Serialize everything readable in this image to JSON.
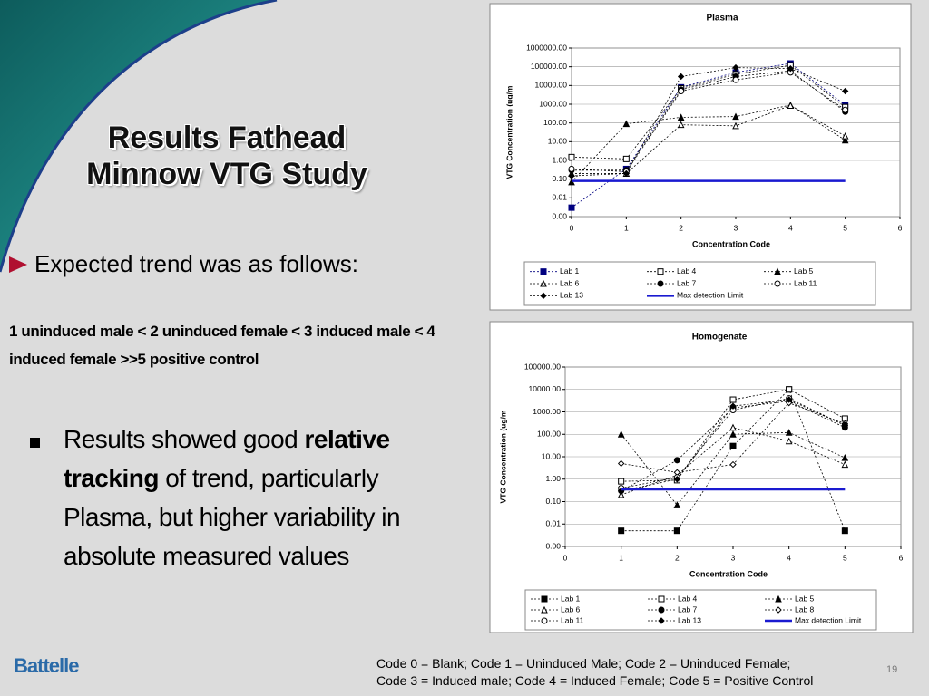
{
  "title": [
    "Results Fathead",
    "Minnow VTG Study"
  ],
  "bullet_1": "Expected trend was as follows:",
  "trend": "1 uninduced male < 2 uninduced female < 3 induced male < 4 induced female >>5 positive control",
  "bullet_2": {
    "before": "Results showed good ",
    "bold": "relative tracking",
    "after": " of trend, particularly Plasma, but higher variability in absolute measured values"
  },
  "logo": "Battelle",
  "codes": [
    "Code 0 = Blank; Code 1 = Uninduced Male;  Code 2 = Uninduced Female;",
    "Code 3 = Induced male; Code 4 = Induced Female;  Code 5 = Positive Control"
  ],
  "page_number": "19",
  "chart_data": [
    {
      "type": "line",
      "title": "Plasma",
      "xlabel": "Concentration Code",
      "ylabel": "VTG Concentration (ug/m",
      "log_y": true,
      "x": [
        0,
        1,
        2,
        3,
        4,
        5
      ],
      "xlim": [
        0,
        6
      ],
      "xticks": [
        0,
        1,
        2,
        3,
        4,
        5,
        6
      ],
      "ylim": [
        0.001,
        1000000
      ],
      "yticks": [
        {
          "value": 0.001,
          "label": "0.00"
        },
        {
          "value": 0.01,
          "label": "0.01"
        },
        {
          "value": 0.1,
          "label": "0.10"
        },
        {
          "value": 1,
          "label": "1.00"
        },
        {
          "value": 10,
          "label": "10.00"
        },
        {
          "value": 100,
          "label": "100.00"
        },
        {
          "value": 1000,
          "label": "1000.00"
        },
        {
          "value": 10000,
          "label": "10000.00"
        },
        {
          "value": 100000,
          "label": "100000.00"
        },
        {
          "value": 1000000,
          "label": "1000000.00"
        }
      ],
      "series": [
        {
          "name": "Lab 1",
          "color": "#000080",
          "marker": "square",
          "line_style": "dotted",
          "values": [
            0.003,
            0.35,
            8000,
            50000,
            150000,
            900
          ]
        },
        {
          "name": "Lab 4",
          "color": "#000000",
          "marker": "square-open",
          "line_style": "dotted",
          "values": [
            1.5,
            1.2,
            7000,
            40000,
            120000,
            700
          ]
        },
        {
          "name": "Lab 5",
          "color": "#000000",
          "marker": "triangle",
          "line_style": "dotted",
          "values": [
            0.07,
            90,
            200,
            220,
            900,
            12
          ]
        },
        {
          "name": "Lab 6",
          "color": "#000000",
          "marker": "triangle-open",
          "line_style": "dotted",
          "values": [
            0.2,
            0.2,
            80,
            70,
            850,
            20
          ]
        },
        {
          "name": "Lab 7",
          "color": "#000000",
          "marker": "circle",
          "line_style": "dotted",
          "values": [
            0.3,
            0.3,
            6000,
            30000,
            60000,
            400
          ]
        },
        {
          "name": "Lab 11",
          "color": "#000000",
          "marker": "circle-open",
          "line_style": "dotted",
          "values": [
            0.35,
            0.25,
            5000,
            20000,
            50000,
            500
          ]
        },
        {
          "name": "Lab 13",
          "color": "#000000",
          "marker": "diamond",
          "line_style": "dotted",
          "values": [
            0.15,
            0.2,
            30000,
            90000,
            80000,
            5000
          ]
        },
        {
          "name": "Max detection Limit",
          "color": "#1a1ad0",
          "marker": "none",
          "line_style": "solid",
          "values": [
            0.08,
            0.08,
            0.08,
            0.08,
            0.08,
            0.08
          ]
        }
      ]
    },
    {
      "type": "line",
      "title": "Homogenate",
      "xlabel": "Concentration Code",
      "ylabel": "VTG Concentration (ug/m",
      "log_y": true,
      "x": [
        1,
        2,
        3,
        4,
        5
      ],
      "xlim": [
        0,
        6
      ],
      "xticks": [
        0,
        1,
        2,
        3,
        4,
        5,
        6
      ],
      "ylim": [
        0.001,
        100000
      ],
      "yticks": [
        {
          "value": 0.001,
          "label": "0.00"
        },
        {
          "value": 0.01,
          "label": "0.01"
        },
        {
          "value": 0.1,
          "label": "0.10"
        },
        {
          "value": 1,
          "label": "1.00"
        },
        {
          "value": 10,
          "label": "10.00"
        },
        {
          "value": 100,
          "label": "100.00"
        },
        {
          "value": 1000,
          "label": "1000.00"
        },
        {
          "value": 10000,
          "label": "10000.00"
        },
        {
          "value": 100000,
          "label": "100000.00"
        }
      ],
      "series": [
        {
          "name": "Lab 1",
          "color": "#000000",
          "marker": "square",
          "line_style": "dotted",
          "values": [
            0.005,
            0.005,
            30,
            10000,
            0.005
          ]
        },
        {
          "name": "Lab 4",
          "color": "#000000",
          "marker": "square-open",
          "line_style": "dotted",
          "values": [
            0.8,
            0.9,
            3500,
            10000,
            500
          ]
        },
        {
          "name": "Lab 5",
          "color": "#000000",
          "marker": "triangle",
          "line_style": "dotted",
          "values": [
            100,
            0.07,
            100,
            120,
            9
          ]
        },
        {
          "name": "Lab 6",
          "color": "#000000",
          "marker": "triangle-open",
          "line_style": "dotted",
          "values": [
            0.2,
            1.5,
            200,
            50,
            4.5
          ]
        },
        {
          "name": "Lab 7",
          "color": "#000000",
          "marker": "circle",
          "line_style": "dotted",
          "values": [
            0.3,
            7,
            1500,
            3000,
            200
          ]
        },
        {
          "name": "Lab 8",
          "color": "#000000",
          "marker": "diamond-open",
          "line_style": "dotted",
          "values": [
            5,
            2,
            4.5,
            2500,
            300
          ]
        },
        {
          "name": "Lab 11",
          "color": "#000000",
          "marker": "circle-open",
          "line_style": "dotted",
          "values": [
            0.4,
            1.2,
            1200,
            4000,
            250
          ]
        },
        {
          "name": "Lab 13",
          "color": "#000000",
          "marker": "diamond",
          "line_style": "dotted",
          "values": [
            0.3,
            1,
            1800,
            3500,
            250
          ]
        },
        {
          "name": "Max detection Limit",
          "color": "#1a1ad0",
          "marker": "none",
          "line_style": "solid",
          "values": [
            0.35,
            0.35,
            0.35,
            0.35,
            0.35
          ]
        }
      ]
    }
  ]
}
